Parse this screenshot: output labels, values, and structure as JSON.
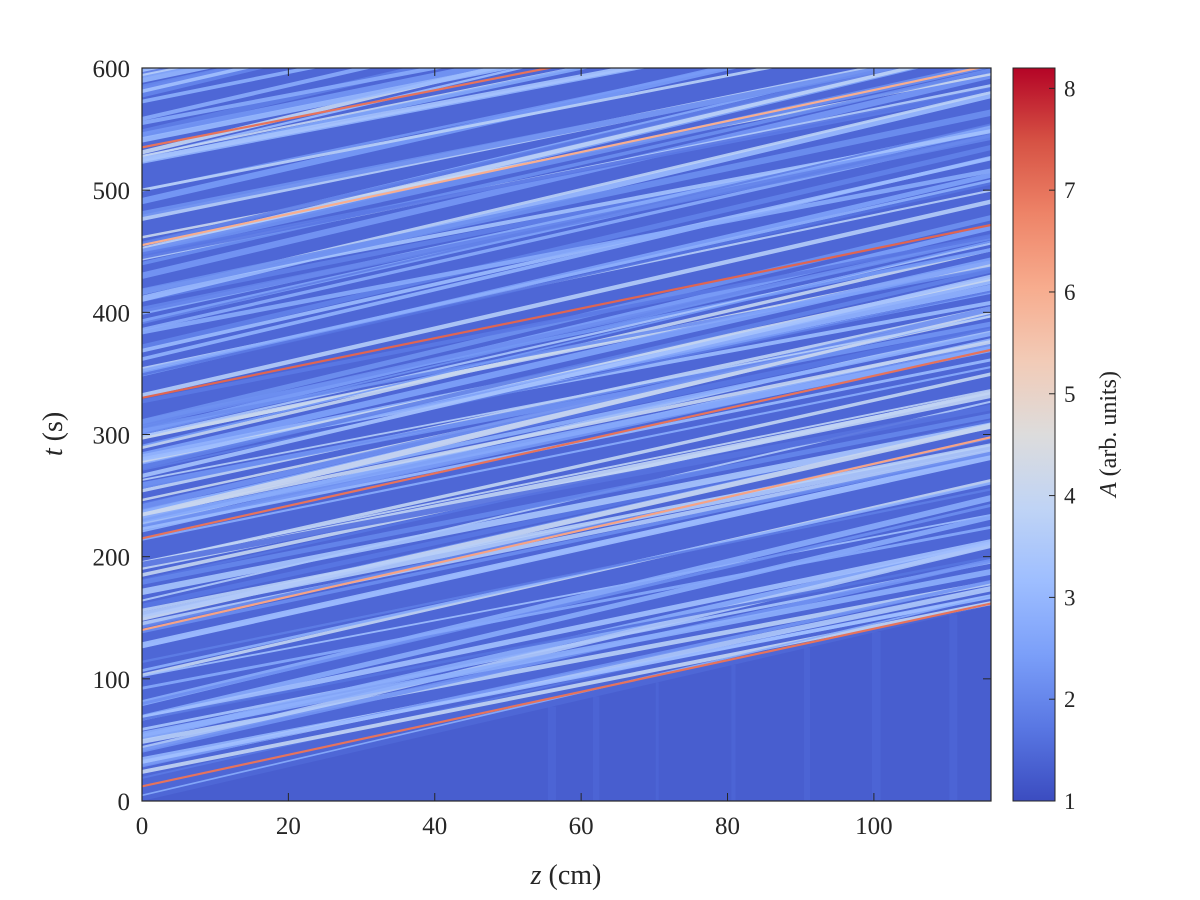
{
  "chart_data": {
    "type": "heatmap",
    "title": "",
    "xlabel": {
      "symbol": "z",
      "unit": "(cm)"
    },
    "ylabel": {
      "symbol": "t",
      "unit": "(s)"
    },
    "xlim": [
      0,
      116
    ],
    "ylim": [
      0,
      600
    ],
    "xticks": [
      0,
      20,
      40,
      60,
      80,
      100
    ],
    "yticks": [
      0,
      100,
      200,
      300,
      400,
      500,
      600
    ],
    "grid": false,
    "colorbar": {
      "label": {
        "symbol": "A",
        "unit": "(arb. units)"
      },
      "range": [
        1,
        8.2
      ],
      "ticks": [
        1,
        2,
        3,
        4,
        5,
        6,
        7,
        8
      ],
      "colormap": "coolwarm",
      "stops": [
        "#3b4cc0",
        "#5977e3",
        "#7b9ff9",
        "#9ebeff",
        "#c0d4f5",
        "#dddcdc",
        "#f2cbb7",
        "#f7ac8e",
        "#ee8468",
        "#d65244",
        "#b40426"
      ]
    },
    "background_amplitude": 1.3,
    "front": {
      "z": [
        0,
        116
      ],
      "t": [
        0,
        160
      ]
    },
    "peak_lines": [
      {
        "t0": 12,
        "slope": 1.29,
        "amplitude": 7.0
      },
      {
        "t0": 140,
        "slope": 1.36,
        "amplitude": 6.2
      },
      {
        "t0": 215,
        "slope": 1.33,
        "amplitude": 7.0
      },
      {
        "t0": 330,
        "slope": 1.22,
        "amplitude": 7.2
      },
      {
        "t0": 455,
        "slope": 1.27,
        "amplitude": 6.0
      },
      {
        "t0": 535,
        "slope": 1.17,
        "amplitude": 7.0
      }
    ]
  }
}
